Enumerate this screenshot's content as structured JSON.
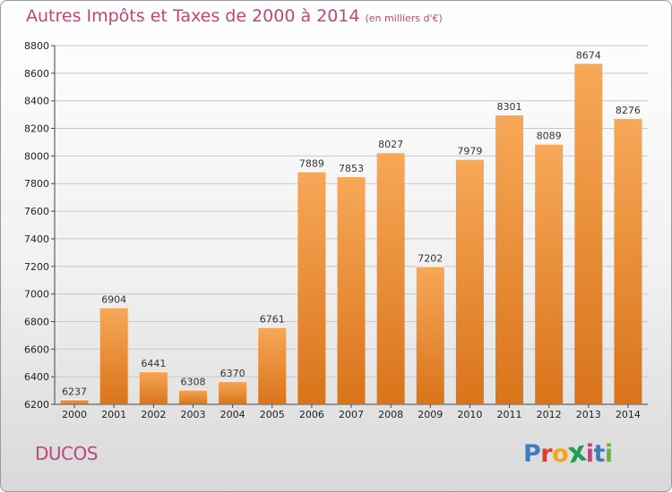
{
  "header": {
    "title": "Autres Impôts et Taxes de 2000 à 2014",
    "unit": "(en milliers d'€)"
  },
  "footer": {
    "town": "DUCOS",
    "logo_letters": [
      "P",
      "r",
      "o",
      "x",
      "i",
      "t",
      "i"
    ]
  },
  "colors": {
    "title": "#c0457a",
    "bar_top": "#f7a858",
    "bar_bottom": "#d9741a",
    "grid": "#c8c8c8"
  },
  "chart_data": {
    "type": "bar",
    "title": "Autres Impôts et Taxes de 2000 à 2014",
    "subtitle": "(en milliers d'€)",
    "xlabel": "",
    "ylabel": "",
    "categories": [
      "2000",
      "2001",
      "2002",
      "2003",
      "2004",
      "2005",
      "2006",
      "2007",
      "2008",
      "2009",
      "2010",
      "2011",
      "2012",
      "2013",
      "2014"
    ],
    "values": [
      6237,
      6904,
      6441,
      6308,
      6370,
      6761,
      7889,
      7853,
      8027,
      7202,
      7979,
      8301,
      8089,
      8674,
      8276
    ],
    "ylim": [
      6200,
      8800
    ],
    "yticks": [
      6200,
      6400,
      6600,
      6800,
      7000,
      7200,
      7400,
      7600,
      7800,
      8000,
      8200,
      8400,
      8600,
      8800
    ],
    "grid": true,
    "data_labels": true
  }
}
